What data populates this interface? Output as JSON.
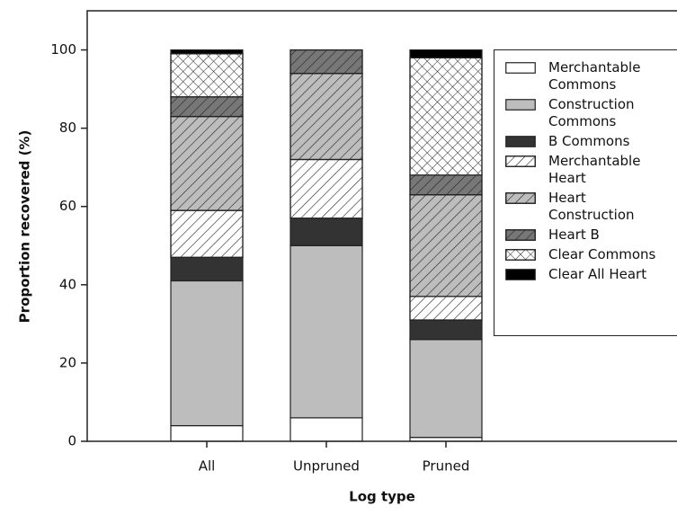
{
  "chart_data": {
    "type": "stacked_bar",
    "x_label": "Log type",
    "y_label": "Proportion recovered (%)",
    "categories": [
      "All",
      "Unpruned",
      "Pruned"
    ],
    "ylim": [
      0,
      110
    ],
    "yticks": [
      0,
      20,
      40,
      60,
      80,
      100
    ],
    "legend": "upper right",
    "series": [
      {
        "name": "Merchantable Commons",
        "color": "#ffffff",
        "values": [
          4,
          6,
          1
        ]
      },
      {
        "name": "Construction Commons",
        "color": "#bdbdbd",
        "values": [
          37,
          44,
          25
        ]
      },
      {
        "name": "B Commons",
        "color": "#333333",
        "values": [
          6,
          7,
          5
        ]
      },
      {
        "name": "Merchantable Heart",
        "color": "#ffffff",
        "pattern": "diagonal",
        "values": [
          12,
          15,
          6
        ]
      },
      {
        "name": "Heart Construction",
        "color": "#bdbdbd",
        "pattern": "diagonal",
        "values": [
          24,
          22,
          26
        ]
      },
      {
        "name": "Heart B",
        "color": "#777777",
        "pattern": "diagonal",
        "values": [
          5,
          6,
          5
        ]
      },
      {
        "name": "Clear Commons",
        "color": "#ffffff",
        "pattern": "cross",
        "values": [
          11,
          0,
          30
        ]
      },
      {
        "name": "Clear All Heart",
        "color": "#000000",
        "values": [
          1,
          0,
          2
        ]
      }
    ]
  }
}
